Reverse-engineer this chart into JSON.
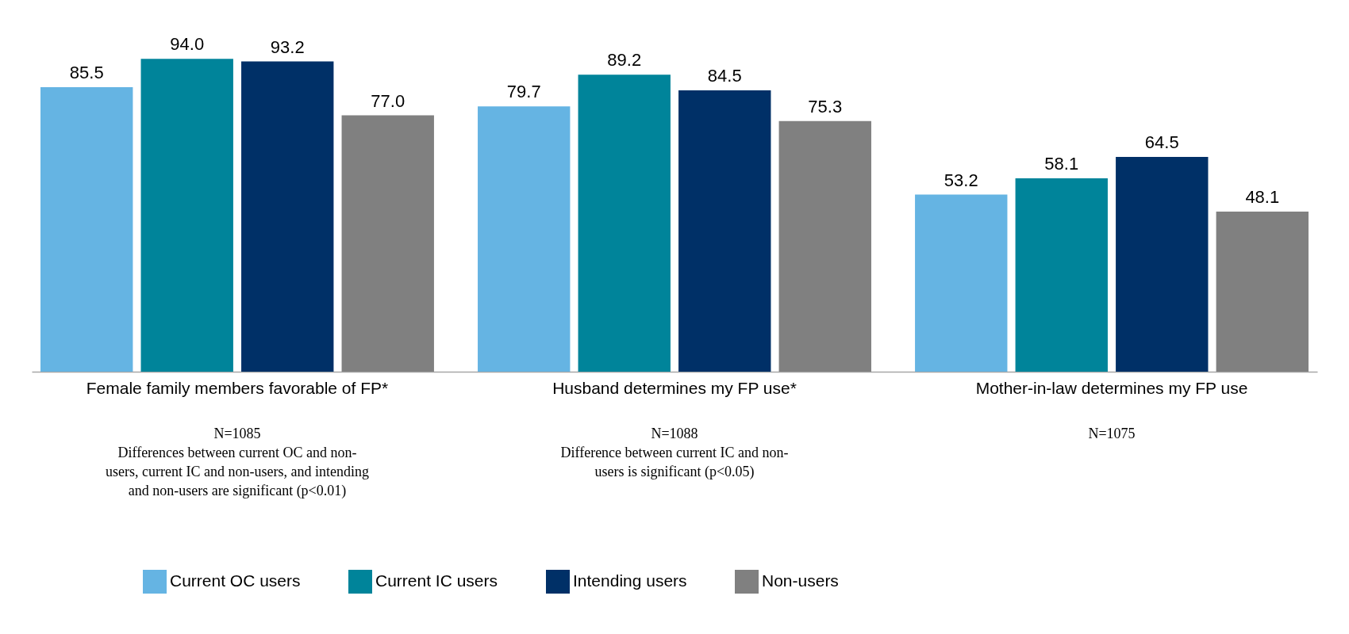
{
  "chart_data": {
    "type": "bar",
    "categories": [
      "Female family members favorable of FP*",
      "Husband determines my FP use*",
      "Mother-in-law determines my FP use"
    ],
    "series": [
      {
        "name": "Current OC users",
        "color": "#65b4e3",
        "values": [
          85.5,
          79.7,
          53.2
        ],
        "value_labels": [
          "85.5",
          "79.7",
          "53.2"
        ]
      },
      {
        "name": "Current IC users",
        "color": "#00849a",
        "values": [
          94.0,
          89.2,
          58.1
        ],
        "value_labels": [
          "94.0",
          "89.2",
          "58.1"
        ]
      },
      {
        "name": "Intending users",
        "color": "#003067",
        "values": [
          93.2,
          84.5,
          64.5
        ],
        "value_labels": [
          "93.2",
          "84.5",
          "64.5"
        ]
      },
      {
        "name": "Non-users",
        "color": "#808080",
        "values": [
          77.0,
          75.3,
          48.1
        ],
        "value_labels": [
          "77.0",
          "75.3",
          "48.1"
        ]
      }
    ],
    "legend": "bottom",
    "annotations": [
      "N=1085\nDifferences between current OC and non-\nusers, current IC and non-users, and intending\nand non-users are significant (p<0.01)",
      "N=1088\nDifference between current IC and non-\nusers is significant (p<0.05)",
      "N=1075"
    ]
  }
}
